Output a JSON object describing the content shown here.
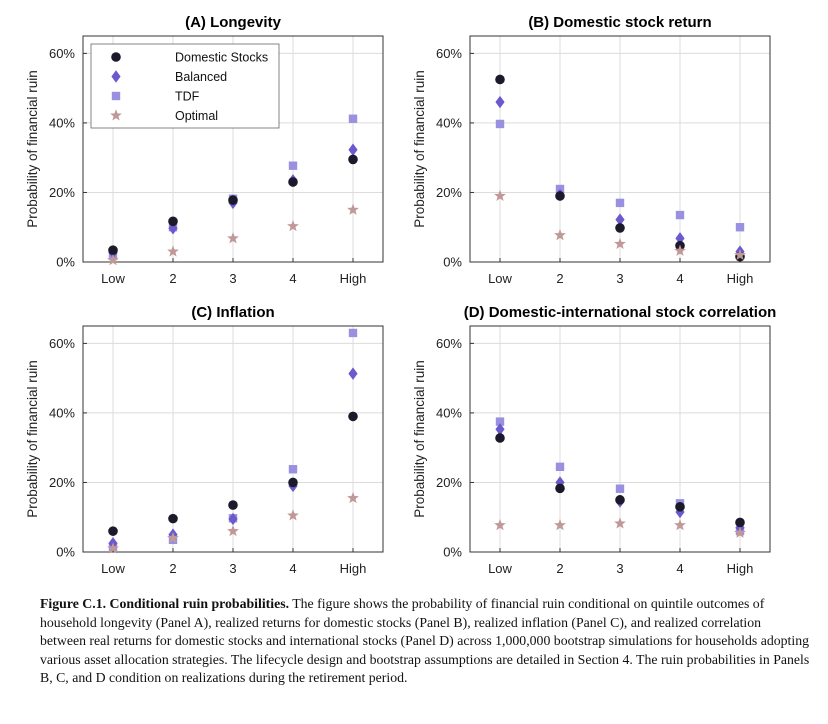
{
  "chart_data": [
    {
      "type": "scatter",
      "title": "(A) Longevity",
      "ylabel": "Probability of financial ruin",
      "categories": [
        "Low",
        "2",
        "3",
        "4",
        "High"
      ],
      "yticks": [
        "0%",
        "20%",
        "40%",
        "60%"
      ],
      "ylim": [
        0,
        0.65
      ],
      "legend": "top-left",
      "grid": true,
      "series": [
        {
          "name": "Domestic Stocks",
          "values": [
            0.034,
            0.117,
            0.178,
            0.23,
            0.295
          ]
        },
        {
          "name": "Balanced",
          "values": [
            0.027,
            0.097,
            0.17,
            0.235,
            0.323
          ]
        },
        {
          "name": "TDF",
          "values": [
            0.02,
            0.1,
            0.182,
            0.277,
            0.412
          ]
        },
        {
          "name": "Optimal",
          "values": [
            0.005,
            0.03,
            0.068,
            0.103,
            0.15
          ]
        }
      ]
    },
    {
      "type": "scatter",
      "title": "(B) Domestic stock return",
      "ylabel": "Probability of financial ruin",
      "categories": [
        "Low",
        "2",
        "3",
        "4",
        "High"
      ],
      "yticks": [
        "0%",
        "20%",
        "40%",
        "60%"
      ],
      "ylim": [
        0,
        0.65
      ],
      "grid": true,
      "series": [
        {
          "name": "Domestic Stocks",
          "values": [
            0.525,
            0.19,
            0.098,
            0.047,
            0.015
          ]
        },
        {
          "name": "Balanced",
          "values": [
            0.46,
            0.193,
            0.122,
            0.068,
            0.03
          ]
        },
        {
          "name": "TDF",
          "values": [
            0.397,
            0.21,
            0.17,
            0.135,
            0.1
          ]
        },
        {
          "name": "Optimal",
          "values": [
            0.19,
            0.077,
            0.052,
            0.032,
            0.02
          ]
        }
      ]
    },
    {
      "type": "scatter",
      "title": "(C) Inflation",
      "ylabel": "Probability of financial ruin",
      "categories": [
        "Low",
        "2",
        "3",
        "4",
        "High"
      ],
      "yticks": [
        "0%",
        "20%",
        "40%",
        "60%"
      ],
      "ylim": [
        0,
        0.65
      ],
      "grid": true,
      "series": [
        {
          "name": "Domestic Stocks",
          "values": [
            0.06,
            0.096,
            0.135,
            0.2,
            0.39
          ]
        },
        {
          "name": "Balanced",
          "values": [
            0.025,
            0.05,
            0.095,
            0.19,
            0.513
          ]
        },
        {
          "name": "TDF",
          "values": [
            0.015,
            0.035,
            0.097,
            0.238,
            0.63
          ]
        },
        {
          "name": "Optimal",
          "values": [
            0.01,
            0.04,
            0.06,
            0.105,
            0.155
          ]
        }
      ]
    },
    {
      "type": "scatter",
      "title": "(D) Domestic-international stock correlation",
      "ylabel": "Probability of financial ruin",
      "categories": [
        "Low",
        "2",
        "3",
        "4",
        "High"
      ],
      "yticks": [
        "0%",
        "20%",
        "40%",
        "60%"
      ],
      "ylim": [
        0,
        0.65
      ],
      "grid": true,
      "series": [
        {
          "name": "Domestic Stocks",
          "values": [
            0.328,
            0.183,
            0.15,
            0.13,
            0.085
          ]
        },
        {
          "name": "Balanced",
          "values": [
            0.353,
            0.2,
            0.145,
            0.115,
            0.07
          ]
        },
        {
          "name": "TDF",
          "values": [
            0.375,
            0.245,
            0.182,
            0.14,
            0.06
          ]
        },
        {
          "name": "Optimal",
          "values": [
            0.077,
            0.077,
            0.082,
            0.077,
            0.055
          ]
        }
      ]
    }
  ],
  "colors": {
    "domestic": "#1a1a2a",
    "balanced": "#6a5acd",
    "tdf": "#9a90e0",
    "optimal": "#c09898",
    "grid": "#dcdcdc",
    "frame": "#333333"
  },
  "caption": {
    "lead": "Figure C.1.  Conditional ruin probabilities.",
    "body": " The figure shows the probability of financial ruin conditional on quintile outcomes of household longevity (Panel A), realized returns for domestic stocks (Panel B), realized inflation (Panel C), and realized correlation between real returns for domestic stocks and international stocks (Panel D) across 1,000,000 bootstrap simulations for households adopting various asset allocation strategies. The lifecycle design and bootstrap assumptions are detailed in Section 4. The ruin probabilities in Panels B, C, and D condition on realizations during the retirement period."
  }
}
